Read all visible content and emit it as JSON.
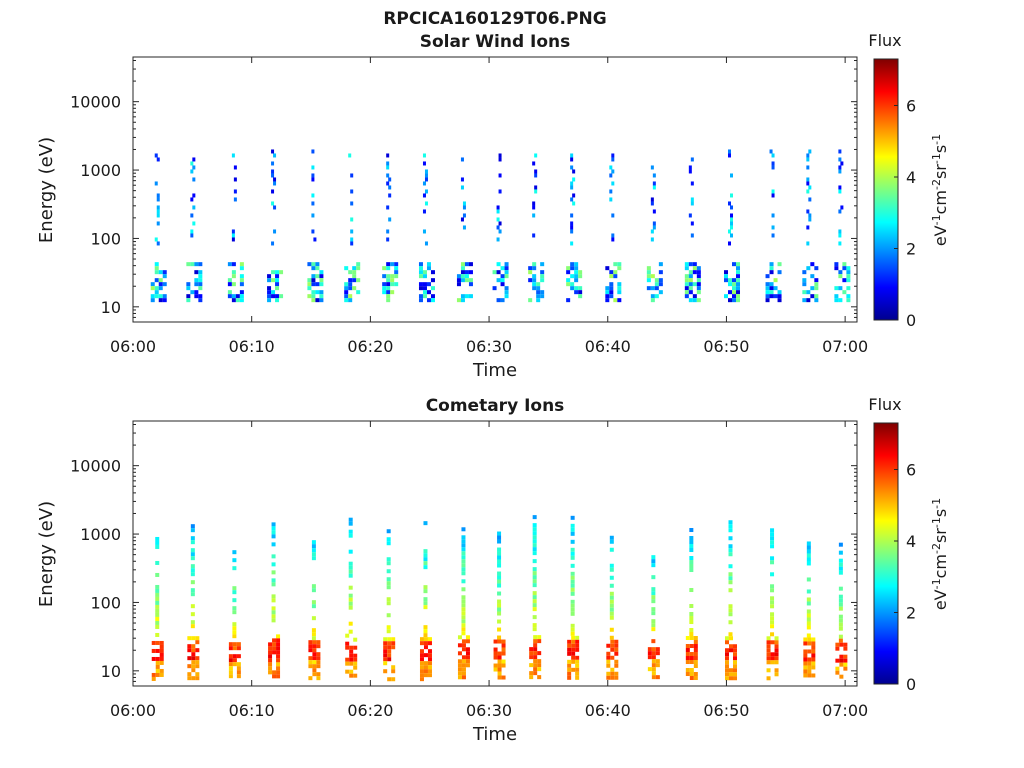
{
  "figure_title": "RPCICA160129T06.PNG",
  "colormap": [
    "#00008f",
    "#0000ff",
    "#007fff",
    "#00ffff",
    "#7fff7f",
    "#ffff00",
    "#ff7f00",
    "#ff0000",
    "#7f0000"
  ],
  "chart_data": [
    {
      "type": "heatmap",
      "title": "Solar Wind Ions",
      "xlabel": "Time",
      "ylabel": "Energy (eV)",
      "x_ticks": [
        "06:00",
        "06:10",
        "06:20",
        "06:30",
        "06:40",
        "06:50",
        "07:00"
      ],
      "xlim_minutes": [
        0,
        61
      ],
      "y_scale": "log",
      "y_ticks": [
        "10",
        "100",
        "1000",
        "10000"
      ],
      "ylim": [
        6,
        45000
      ],
      "colorbar": {
        "label": "Flux",
        "unit_label": "eV-1cm-2sr-1s-1",
        "range": [
          0,
          7.3
        ],
        "ticks": [
          "0",
          "2",
          "4",
          "6"
        ]
      },
      "scans_minutes": [
        2,
        5,
        8.5,
        11.8,
        15.2,
        18.3,
        21.5,
        24.6,
        27.8,
        30.8,
        33.8,
        37.0,
        40.3,
        43.8,
        47.0,
        50.3,
        53.8,
        56.9,
        59.6
      ],
      "high_energy_band_eV": [
        80,
        2000
      ],
      "low_energy_band_eV": [
        12,
        45
      ],
      "flux_range_observed": [
        0.5,
        4.0
      ]
    },
    {
      "type": "heatmap",
      "title": "Cometary Ions",
      "xlabel": "Time",
      "ylabel": "Energy (eV)",
      "x_ticks": [
        "06:00",
        "06:10",
        "06:20",
        "06:30",
        "06:40",
        "06:50",
        "07:00"
      ],
      "xlim_minutes": [
        0,
        61
      ],
      "y_scale": "log",
      "y_ticks": [
        "10",
        "100",
        "1000",
        "10000"
      ],
      "ylim": [
        6,
        45000
      ],
      "colorbar": {
        "label": "Flux",
        "unit_label": "eV-1cm-2sr-1s-1",
        "range": [
          0,
          7.3
        ],
        "ticks": [
          "0",
          "2",
          "4",
          "6"
        ]
      },
      "scans_minutes": [
        2,
        5,
        8.5,
        11.8,
        15.2,
        18.3,
        21.5,
        24.6,
        27.8,
        30.8,
        33.8,
        37.0,
        40.3,
        43.8,
        47.0,
        50.3,
        53.8,
        56.9,
        59.6
      ],
      "low_energy_band_eV": [
        8,
        45
      ],
      "peak_flux_energy_eV": [
        15,
        30
      ],
      "flux_range_observed": [
        1.5,
        6.8
      ]
    }
  ]
}
